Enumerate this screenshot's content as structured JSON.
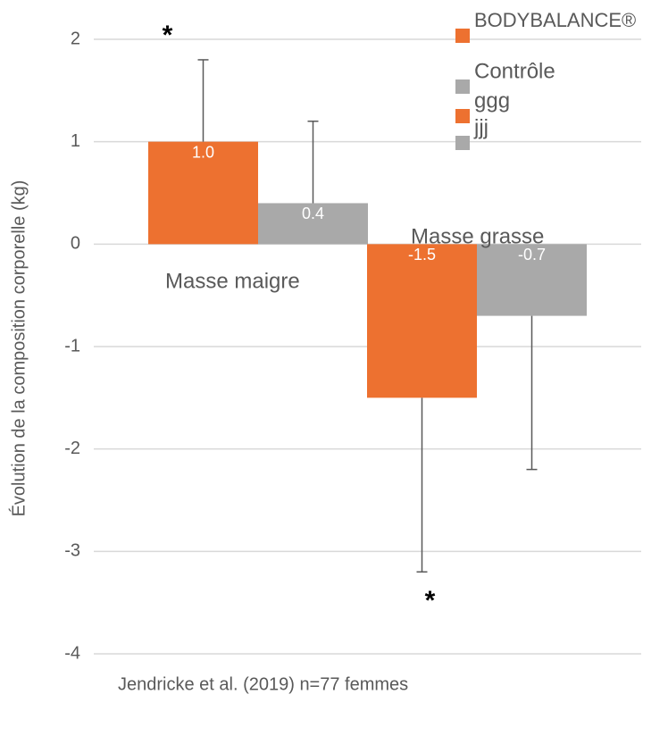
{
  "chart_data": {
    "type": "bar",
    "categories": [
      "Masse maigre",
      "Masse grasse"
    ],
    "series": [
      {
        "name": "BODYBALANCE®",
        "color": "#ed7130",
        "values": [
          1.0,
          -1.5
        ],
        "value_labels": [
          "1.0",
          "-1.5"
        ],
        "errors": [
          0.8,
          1.7
        ]
      },
      {
        "name": "Contrôle",
        "color": "#a9a9a9",
        "values": [
          0.4,
          -0.7
        ],
        "errors": [
          0.8,
          1.5
        ]
      },
      {
        "name": "ggg",
        "color": "#ed7130",
        "values": [
          null,
          null
        ]
      },
      {
        "name": "jjj",
        "color": "#a9a9a9",
        "values": [
          null,
          null
        ]
      }
    ],
    "y_label": "Évolution de la composition corporelle (kg)",
    "ylim": [
      -4,
      2
    ],
    "yticks": [
      -4,
      -3,
      -2,
      -1,
      0,
      1,
      2
    ],
    "grid": true,
    "annotations": [
      "*",
      "*"
    ],
    "footnote": "Jendricke et al. (2019) n=77 femmes"
  }
}
